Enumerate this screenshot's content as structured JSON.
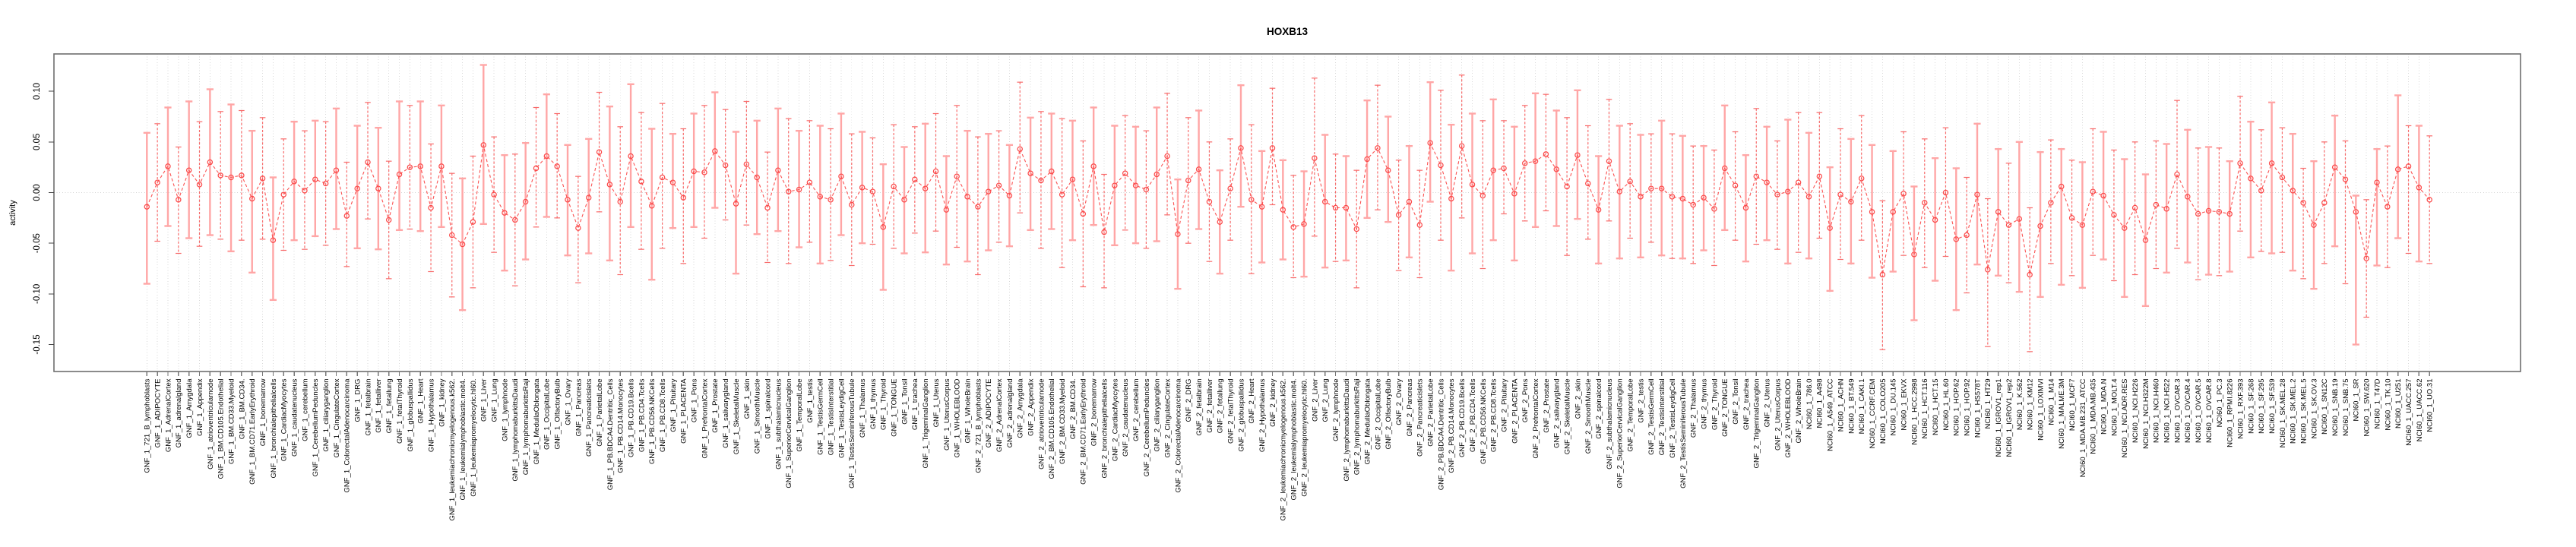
{
  "title": "HOXB13",
  "chart_data": {
    "type": "line",
    "subtype": "points-with-error-bars",
    "title": "HOXB13",
    "xlabel": "",
    "ylabel": "activity",
    "ylim": [
      -0.177,
      0.137
    ],
    "yticks": [
      0.1,
      0.05,
      0.0,
      -0.05,
      -0.1,
      -0.15
    ],
    "ytick_labels": [
      "0.10",
      "0.05",
      "0.00",
      "-0.05",
      "-0.10",
      "-0.15"
    ],
    "grid": "vertical dotted gridline per category, dotted horizontal line at 0, full axis box",
    "legend": "none",
    "point_color": "#fb4b4b",
    "line_color": "#fb5252",
    "errorbar_color": "#ffa6a6",
    "categories": [
      "GNF_1_721_B_lymphoblasts",
      "GNF_1_ADIPOCYTE",
      "GNF_1_AdrenalCortex",
      "GNF_1_adrenalgland",
      "GNF_1_Amygdala",
      "GNF_1_Appendix",
      "GNF_1_atrioventricularnode",
      "GNF_1_BM.CD105.Endothelial",
      "GNF_1_BM.CD33.Myeloid",
      "GNF_1_BM.CD34.",
      "GNF_1_BM.CD71.EarlyErythroid",
      "GNF_1_bonemarrow",
      "GNF_1_bronchialepithelialcells",
      "GNF_1_CardiacMyocytes",
      "GNF_1_caudatenucleus",
      "GNF_1_cerebellum",
      "GNF_1_CerebellumPeduncles",
      "GNF_1_ciliaryganglion",
      "GNF_1_CingulateCortex",
      "GNF_1_ColorectalAdenocarcinoma",
      "GNF_1_DRG",
      "GNF_1_fetalbrain",
      "GNF_1_fetalliver",
      "GNF_1_fetallung",
      "GNF_1_fetalThyroid",
      "GNF_1_globuspallidus",
      "GNF_1_Heart",
      "GNF_1_Hypothalamus",
      "GNF_1_kidney",
      "GNF_1_leukemiachronicmyelogenous.k562.",
      "GNF_1_leukemialymphoblastic.molt4.",
      "GNF_1_leukemiapromyelocytic.hl60.",
      "GNF_1_Liver",
      "GNF_1_Lung",
      "GNF_1_lymphnode",
      "GNF_1_lymphomaburkittsDaudi",
      "GNF_1_lymphomaburkittsRaji",
      "GNF_1_MedullaOblongata",
      "GNF_1_OccipitalLobe",
      "GNF_1_OlfactoryBulb",
      "GNF_1_Ovary",
      "GNF_1_Pancreas",
      "GNF_1_Pancreaticislets",
      "GNF_1_ParietalLobe",
      "GNF_1_PB.BDCA4.Dentritic_Cells",
      "GNF_1_PB.CD14.Monocytes",
      "GNF_1_PB.CD19.Bcells",
      "GNF_1_PB.CD4.Tcells",
      "GNF_1_PB.CD56.NKCells",
      "GNF_1_PB.CD8.Tcells",
      "GNF_1_Pituitary",
      "GNF_1_PLACENTA",
      "GNF_1_Pons",
      "GNF_1_PrefrontalCortex",
      "GNF_1_Prostate",
      "GNF_1_salivarygland",
      "GNF_1_SkeletalMuscle",
      "GNF_1_skin",
      "GNF_1_SmoothMuscle",
      "GNF_1_spinalcord",
      "GNF_1_subthalamicnucleus",
      "GNF_1_SuperiorCervicalGanglion",
      "GNF_1_TemporalLobe",
      "GNF_1_testis",
      "GNF_1_TestisGermCell",
      "GNF_1_TestisInterstitial",
      "GNF_1_TestisLeydigCell",
      "GNF_1_TestisSeminiferousTubule",
      "GNF_1_Thalamus",
      "GNF_1_thymus",
      "GNF_1_Thyroid",
      "GNF_1_TONGUE",
      "GNF_1_Tonsil",
      "GNF_1_trachea",
      "GNF_1_TrigeminalGanglion",
      "GNF_1_Uterus",
      "GNF_1_UterusCorpus",
      "GNF_1_WHOLEBLOOD",
      "GNF_1_WholeBrain",
      "GNF_2_721_B_lymphoblasts",
      "GNF_2_ADIPOCYTE",
      "GNF_2_AdrenalCortex",
      "GNF_2_adrenalgland",
      "GNF_2_Amygdala",
      "GNF_2_Appendix",
      "GNF_2_atrioventricularnode",
      "GNF_2_BM.CD105.Endothelial",
      "GNF_2_BM.CD33.Myeloid",
      "GNF_2_BM.CD34.",
      "GNF_2_BM.CD71.EarlyErythroid",
      "GNF_2_bonemarrow",
      "GNF_2_bronchialepithelialcells",
      "GNF_2_CardiacMyocytes",
      "GNF_2_caudatenucleus",
      "GNF_2_cerebellum",
      "GNF_2_CerebellumPeduncles",
      "GNF_2_ciliaryganglion",
      "GNF_2_CingulateCortex",
      "GNF_2_ColorectalAdenocarcinoma",
      "GNF_2_DRG",
      "GNF_2_fetalbrain",
      "GNF_2_fetalliver",
      "GNF_2_fetallung",
      "GNF_2_fetalThyroid",
      "GNF_2_globuspallidus",
      "GNF_2_Heart",
      "GNF_2_Hypothalamus",
      "GNF_2_kidney",
      "GNF_2_leukemiachronicmyelogenous.k562.",
      "GNF_2_leukemialymphoblastic.molt4.",
      "GNF_2_leukemiapromyelocytic.hl60.",
      "GNF_2_Liver",
      "GNF_2_Lung",
      "GNF_2_lymphnode",
      "GNF_2_lymphomaburkittsDaudi",
      "GNF_2_lymphomaburkittsRaji",
      "GNF_2_MedullaOblongata",
      "GNF_2_OccipitalLobe",
      "GNF_2_OlfactoryBulb",
      "GNF_2_Ovary",
      "GNF_2_Pancreas",
      "GNF_2_Pancreaticislets",
      "GNF_2_ParietalLobe",
      "GNF_2_PB.BDCA4.Dentritic_Cells",
      "GNF_2_PB.CD14.Monocytes",
      "GNF_2_PB.CD19.Bcells",
      "GNF_2_PB.CD4.Tcells",
      "GNF_2_PB.CD56.NKCells",
      "GNF_2_PB.CD8.Tcells",
      "GNF_2_Pituitary",
      "GNF_2_PLACENTA",
      "GNF_2_Pons",
      "GNF_2_PrefrontalCortex",
      "GNF_2_Prostate",
      "GNF_2_salivarygland",
      "GNF_2_SkeletalMuscle",
      "GNF_2_skin",
      "GNF_2_SmoothMuscle",
      "GNF_2_spinalcord",
      "GNF_2_subthalamicnucleus",
      "GNF_2_SuperiorCervicalGanglion",
      "GNF_2_TemporalLobe",
      "GNF_2_testis",
      "GNF_2_TestisGermCell",
      "GNF_2_TestisInterstitial",
      "GNF_2_TestisLeydigCell",
      "GNF_2_TestisSeminiferousTubule",
      "GNF_2_Thalamus",
      "GNF_2_thymus",
      "GNF_2_Thyroid",
      "GNF_2_TONGUE",
      "GNF_2_Tonsil",
      "GNF_2_trachea",
      "GNF_2_TrigeminalGanglion",
      "GNF_2_Uterus",
      "GNF_2_UterusCorpus",
      "GNF_2_WHOLEBLOOD",
      "GNF_2_WholeBrain",
      "NCI60_1_786.0",
      "NCI60_1_A498",
      "NCI60_1_A549_ATCC",
      "NCI60_1_ACHN",
      "NCI60_1_BT.549",
      "NCI60_1_CAKI.1",
      "NCI60_1_CCRF.CEM",
      "NCI60_1_COLO205",
      "NCI60_1_DU.145",
      "NCI60_1_EKVX",
      "NCI60_1_HCC.2998",
      "NCI60_1_HCT.116",
      "NCI60_1_HCT.15",
      "NCI60_1_HL.60",
      "NCI60_1_HOP.62",
      "NCI60_1_HOP.92",
      "NCI60_1_HS578T",
      "NCI60_1_HT29",
      "NCI60_1_IGROV1_rep1",
      "NCI60_1_IGROV1_rep2",
      "NCI60_1_K.562",
      "NCI60_1_KM12",
      "NCI60_1_LOXIMVI",
      "NCI60_1_M14",
      "NCI60_1_MALME.3M",
      "NCI60_1_MCF7",
      "NCI60_1_MDA.MB.231_ATCC",
      "NCI60_1_MDA.MB.435",
      "NCI60_1_MDA.N",
      "NCI60_1_MOLT.4",
      "NCI60_1_NCI.ADR.RES",
      "NCI60_1_NCI.H226",
      "NCI60_1_NCI.H322M",
      "NCI60_1_NCI.H460",
      "NCI60_1_NCI.H522",
      "NCI60_1_OVCAR.3",
      "NCI60_1_OVCAR.4",
      "NCI60_1_OVCAR.5",
      "NCI60_1_OVCAR.8",
      "NCI60_1_PC.3",
      "NCI60_1_RPMI.8226",
      "NCI60_1_RXF.393",
      "NCI60_1_SF.268",
      "NCI60_1_SF.295",
      "NCI60_1_SF.539",
      "NCI60_1_SK.MEL.28",
      "NCI60_1_SK.MEL.2",
      "NCI60_1_SK.MEL.5",
      "NCI60_1_SK.OV.3",
      "NCI60_1_SN12C",
      "NCI60_1_SNB.19",
      "NCI60_1_SNB.75",
      "NCI60_1_SR",
      "NCI60_1_SW.620",
      "NCI60_1_T47D",
      "NCI60_1_TK.10",
      "NCI60_1_U251",
      "NCI60_1_UACC.257",
      "NCI60_1_UACC.62",
      "NCI60_1_UO.31"
    ],
    "values": [
      -0.014,
      0.01,
      0.026,
      -0.007,
      0.022,
      0.008,
      0.03,
      0.017,
      0.015,
      0.017,
      -0.006,
      0.014,
      -0.047,
      -0.002,
      0.011,
      0.002,
      0.013,
      0.009,
      0.022,
      -0.023,
      0.004,
      0.03,
      0.004,
      -0.027,
      0.018,
      0.025,
      0.026,
      -0.015,
      0.026,
      -0.042,
      -0.051,
      -0.029,
      0.047,
      -0.002,
      -0.02,
      -0.027,
      -0.009,
      0.024,
      0.036,
      0.026,
      -0.007,
      -0.035,
      -0.005,
      0.04,
      0.008,
      -0.009,
      0.036,
      0.011,
      -0.013,
      0.015,
      0.01,
      -0.005,
      0.021,
      0.02,
      0.041,
      0.027,
      -0.011,
      0.028,
      0.015,
      -0.015,
      0.022,
      0.001,
      0.003,
      0.01,
      -0.004,
      -0.007,
      0.016,
      -0.012,
      0.005,
      0.001,
      -0.034,
      0.006,
      -0.007,
      0.013,
      0.004,
      0.021,
      -0.017,
      0.016,
      -0.004,
      -0.014,
      0.001,
      0.007,
      -0.003,
      0.043,
      0.019,
      0.012,
      0.021,
      -0.002,
      0.013,
      -0.021,
      0.026,
      -0.039,
      0.007,
      0.019,
      0.007,
      0.003,
      0.018,
      0.036,
      -0.041,
      0.012,
      0.023,
      -0.009,
      -0.029,
      0.004,
      0.044,
      -0.007,
      -0.014,
      0.044,
      -0.017,
      -0.034,
      -0.031,
      0.034,
      -0.009,
      -0.015,
      -0.015,
      -0.036,
      0.033,
      0.044,
      0.022,
      -0.022,
      -0.009,
      -0.032,
      0.049,
      0.027,
      -0.006,
      0.046,
      0.008,
      -0.003,
      0.022,
      0.024,
      -0.001,
      0.029,
      0.031,
      0.038,
      0.023,
      0.006,
      0.037,
      0.009,
      -0.017,
      0.031,
      0.001,
      0.011,
      -0.004,
      0.004,
      0.004,
      -0.004,
      -0.006,
      -0.012,
      -0.005,
      -0.016,
      0.024,
      0.007,
      -0.015,
      0.016,
      0.01,
      -0.002,
      0.001,
      0.01,
      -0.004,
      0.016,
      -0.035,
      -0.002,
      -0.009,
      0.014,
      -0.019,
      -0.081,
      -0.019,
      -0.001,
      -0.061,
      -0.01,
      -0.027,
      0.0,
      -0.046,
      -0.042,
      -0.002,
      -0.076,
      -0.019,
      -0.032,
      -0.026,
      -0.081,
      -0.033,
      -0.01,
      0.006,
      -0.025,
      -0.032,
      0.001,
      -0.003,
      -0.022,
      -0.035,
      -0.015,
      -0.047,
      -0.012,
      -0.016,
      0.018,
      -0.004,
      -0.021,
      -0.018,
      -0.019,
      -0.021,
      0.029,
      0.014,
      0.002,
      0.029,
      0.015,
      0.002,
      -0.01,
      -0.032,
      -0.01,
      0.025,
      0.013,
      -0.019,
      -0.065,
      0.01,
      -0.014,
      0.023,
      0.026,
      0.005,
      -0.007
    ],
    "lower": [
      -0.09,
      -0.048,
      -0.033,
      -0.06,
      -0.045,
      -0.053,
      -0.042,
      -0.046,
      -0.058,
      -0.047,
      -0.079,
      -0.046,
      -0.106,
      -0.057,
      -0.047,
      -0.056,
      -0.043,
      -0.052,
      -0.036,
      -0.073,
      -0.055,
      -0.026,
      -0.056,
      -0.085,
      -0.037,
      -0.036,
      -0.038,
      -0.078,
      -0.034,
      -0.103,
      -0.116,
      -0.094,
      -0.031,
      -0.059,
      -0.077,
      -0.092,
      -0.066,
      -0.034,
      -0.024,
      -0.025,
      -0.062,
      -0.089,
      -0.06,
      -0.019,
      -0.067,
      -0.081,
      -0.034,
      -0.056,
      -0.086,
      -0.055,
      -0.035,
      -0.07,
      -0.034,
      -0.045,
      -0.015,
      -0.027,
      -0.08,
      -0.032,
      -0.041,
      -0.069,
      -0.038,
      -0.07,
      -0.054,
      -0.049,
      -0.07,
      -0.067,
      -0.042,
      -0.072,
      -0.05,
      -0.051,
      -0.096,
      -0.055,
      -0.06,
      -0.04,
      -0.059,
      -0.038,
      -0.071,
      -0.054,
      -0.068,
      -0.081,
      -0.057,
      -0.049,
      -0.053,
      -0.02,
      -0.037,
      -0.055,
      -0.036,
      -0.074,
      -0.047,
      -0.093,
      -0.032,
      -0.094,
      -0.052,
      -0.037,
      -0.05,
      -0.055,
      -0.048,
      -0.022,
      -0.095,
      -0.05,
      -0.036,
      -0.068,
      -0.08,
      -0.047,
      -0.014,
      -0.08,
      -0.069,
      -0.012,
      -0.066,
      -0.084,
      -0.083,
      -0.043,
      -0.074,
      -0.068,
      -0.067,
      -0.094,
      -0.025,
      -0.017,
      -0.029,
      -0.077,
      -0.064,
      -0.084,
      -0.009,
      -0.047,
      -0.077,
      -0.025,
      -0.06,
      -0.075,
      -0.047,
      -0.021,
      -0.067,
      -0.028,
      -0.034,
      -0.018,
      -0.033,
      -0.062,
      -0.026,
      -0.046,
      -0.07,
      -0.028,
      -0.065,
      -0.045,
      -0.064,
      -0.049,
      -0.062,
      -0.065,
      -0.065,
      -0.07,
      -0.057,
      -0.072,
      -0.037,
      -0.047,
      -0.068,
      -0.051,
      -0.047,
      -0.056,
      -0.07,
      -0.059,
      -0.065,
      -0.045,
      -0.097,
      -0.066,
      -0.07,
      -0.047,
      -0.084,
      -0.155,
      -0.078,
      -0.062,
      -0.126,
      -0.074,
      -0.087,
      -0.063,
      -0.116,
      -0.099,
      -0.071,
      -0.152,
      -0.082,
      -0.089,
      -0.098,
      -0.157,
      -0.103,
      -0.07,
      -0.091,
      -0.082,
      -0.094,
      -0.062,
      -0.066,
      -0.087,
      -0.103,
      -0.081,
      -0.112,
      -0.075,
      -0.079,
      -0.055,
      -0.069,
      -0.086,
      -0.081,
      -0.082,
      -0.078,
      -0.038,
      -0.064,
      -0.058,
      -0.06,
      -0.059,
      -0.077,
      -0.085,
      -0.095,
      -0.07,
      -0.053,
      -0.09,
      -0.15,
      -0.123,
      -0.072,
      -0.074,
      -0.045,
      -0.06,
      -0.068,
      -0.07
    ],
    "upper": [
      0.059,
      0.068,
      0.084,
      0.045,
      0.09,
      0.07,
      0.102,
      0.08,
      0.087,
      0.081,
      0.061,
      0.074,
      0.015,
      0.053,
      0.07,
      0.061,
      0.071,
      0.07,
      0.083,
      0.03,
      0.066,
      0.089,
      0.064,
      0.031,
      0.09,
      0.086,
      0.09,
      0.048,
      0.086,
      0.019,
      0.014,
      0.036,
      0.126,
      0.055,
      0.037,
      0.038,
      0.049,
      0.084,
      0.097,
      0.078,
      0.047,
      0.016,
      0.053,
      0.099,
      0.085,
      0.065,
      0.107,
      0.079,
      0.063,
      0.088,
      0.058,
      0.063,
      0.078,
      0.086,
      0.099,
      0.082,
      0.06,
      0.09,
      0.071,
      0.04,
      0.083,
      0.073,
      0.061,
      0.071,
      0.066,
      0.063,
      0.078,
      0.058,
      0.06,
      0.054,
      0.028,
      0.067,
      0.045,
      0.065,
      0.068,
      0.078,
      0.036,
      0.086,
      0.061,
      0.055,
      0.058,
      0.061,
      0.047,
      0.109,
      0.074,
      0.08,
      0.078,
      0.073,
      0.071,
      0.051,
      0.084,
      0.018,
      0.066,
      0.076,
      0.065,
      0.061,
      0.084,
      0.098,
      0.013,
      0.074,
      0.081,
      0.05,
      0.022,
      0.053,
      0.106,
      0.067,
      0.041,
      0.103,
      0.032,
      0.017,
      0.021,
      0.113,
      0.057,
      0.038,
      0.036,
      0.022,
      0.091,
      0.106,
      0.075,
      0.032,
      0.046,
      0.022,
      0.109,
      0.101,
      0.067,
      0.116,
      0.078,
      0.071,
      0.092,
      0.071,
      0.065,
      0.086,
      0.098,
      0.097,
      0.081,
      0.074,
      0.101,
      0.066,
      0.036,
      0.092,
      0.066,
      0.068,
      0.057,
      0.058,
      0.071,
      0.058,
      0.056,
      0.046,
      0.046,
      0.042,
      0.086,
      0.06,
      0.037,
      0.083,
      0.065,
      0.051,
      0.072,
      0.079,
      0.059,
      0.079,
      0.025,
      0.063,
      0.053,
      0.076,
      0.047,
      -0.008,
      0.041,
      0.06,
      0.006,
      0.053,
      0.034,
      0.064,
      0.024,
      0.015,
      0.068,
      -0.006,
      0.043,
      0.029,
      0.05,
      -0.015,
      0.04,
      0.052,
      0.043,
      0.032,
      0.03,
      0.063,
      0.06,
      0.042,
      0.033,
      0.05,
      0.018,
      0.051,
      0.048,
      0.091,
      0.062,
      0.044,
      0.045,
      0.044,
      0.031,
      0.095,
      0.07,
      0.062,
      0.089,
      0.064,
      0.058,
      0.024,
      0.031,
      0.05,
      0.076,
      0.051,
      -0.003,
      -0.007,
      0.043,
      0.046,
      0.096,
      0.066,
      0.066,
      0.056
    ]
  }
}
